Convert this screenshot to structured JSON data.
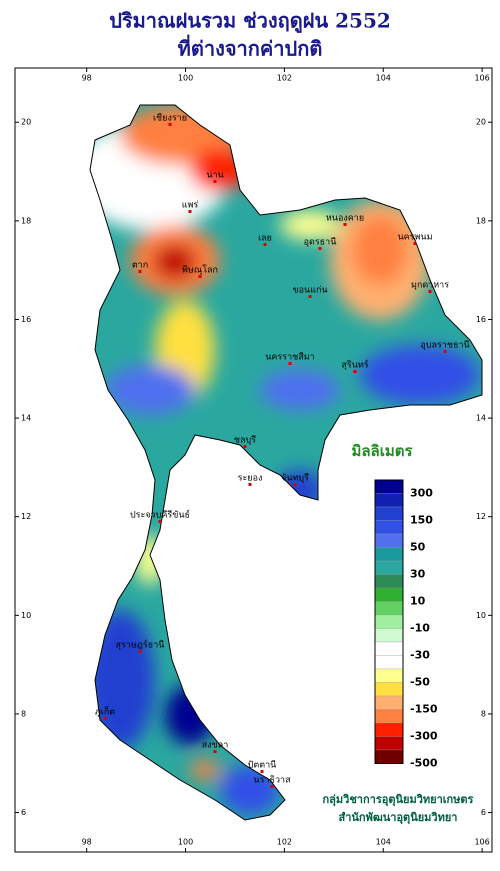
{
  "header": {
    "title": "ปริมาณฝนรวม ช่วงฤดูฝน 2552",
    "subtitle": "ที่ต่างจากค่าปกติ"
  },
  "map": {
    "lonlim": [
      96.55,
      106.2
    ],
    "latlim": [
      5.2,
      21.1
    ],
    "lonticks": [
      98,
      100,
      102,
      104,
      106
    ],
    "latticks": [
      6,
      8,
      10,
      12,
      14,
      16,
      18,
      20
    ],
    "places": [
      "เชียงราย",
      "น่าน",
      "แพร่",
      "ตาก",
      "พิษณุโลก",
      "เลย",
      "หนองคาย",
      "อุดรธานี",
      "นครพนม",
      "มุกดาหาร",
      "ขอนแก่น",
      "นครราชสีมา",
      "สุรินทร์",
      "อุบลราชธานี",
      "ชลบุรี",
      "ระยอง",
      "จันทบุรี",
      "ประจวบคีรีขันธ์",
      "สุราษฎร์ธานี",
      "ภูเก็ต",
      "สงขลา",
      "ปัตตานี",
      "นราธิวาส"
    ]
  },
  "legend": {
    "title": "มิลลิเมตร",
    "colors": [
      "#000090",
      "#1020b0",
      "#2040d0",
      "#3050e8",
      "#5070f0",
      "#1a9a9a",
      "#2aa8a0",
      "#2e8b57",
      "#30b030",
      "#60d060",
      "#a0f0a0",
      "#d0fad0",
      "#ffffff",
      "#ffffff",
      "#ffff90",
      "#ffe040",
      "#ffb070",
      "#ff8040",
      "#ff2000",
      "#c00000",
      "#700000"
    ],
    "ticks": [
      300,
      150,
      50,
      30,
      10,
      -10,
      -30,
      -50,
      -150,
      -300,
      -500
    ]
  },
  "footer": {
    "line1": "กลุ่มวิชาการอุตุนิยมวิทยาเกษตร",
    "line2": "สำนักพัฒนาอุตุนิยมวิทยา"
  }
}
